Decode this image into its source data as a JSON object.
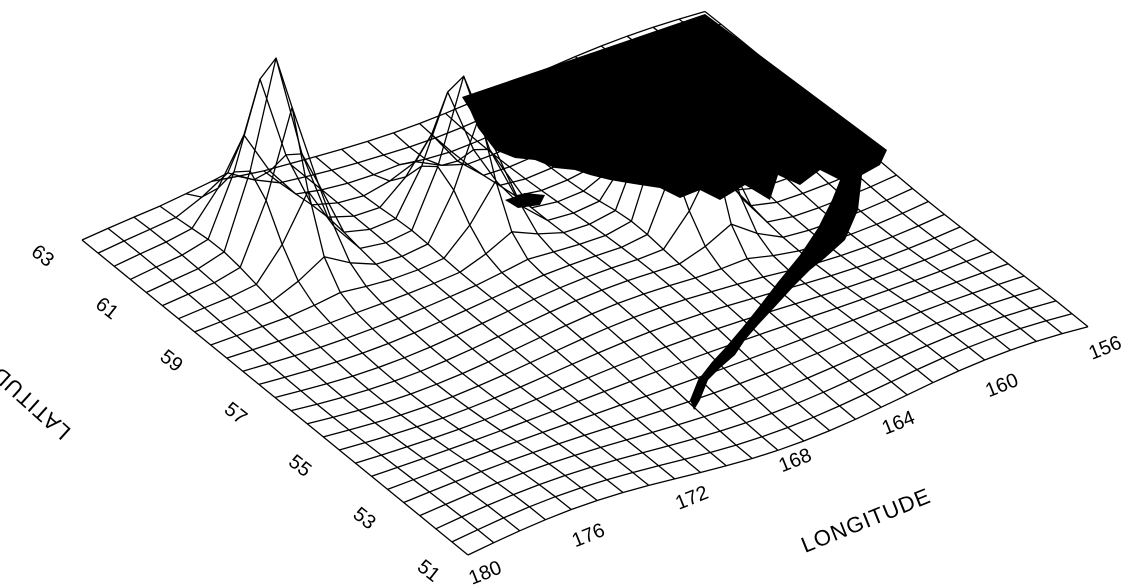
{
  "chart_data": {
    "type": "surface-3d",
    "xlabel": "LONGITUDE",
    "ylabel": "LATITUDE",
    "x_ticks": [
      "180",
      "176",
      "172",
      "168",
      "164",
      "160",
      "156"
    ],
    "y_ticks": [
      "51",
      "53",
      "55",
      "57",
      "59",
      "61",
      "63"
    ],
    "x_range": [
      180,
      156
    ],
    "y_range": [
      51,
      63
    ],
    "grid": "wireframe mesh",
    "shaded_landmass": "Alaska coastline (black fill)",
    "peaks": [
      {
        "lon": 175,
        "lat": 61,
        "relative_height": 0.95
      },
      {
        "lon": 169,
        "lat": 60,
        "relative_height": 0.75
      },
      {
        "lon": 163,
        "lat": 58,
        "relative_height": 1.0
      }
    ]
  }
}
